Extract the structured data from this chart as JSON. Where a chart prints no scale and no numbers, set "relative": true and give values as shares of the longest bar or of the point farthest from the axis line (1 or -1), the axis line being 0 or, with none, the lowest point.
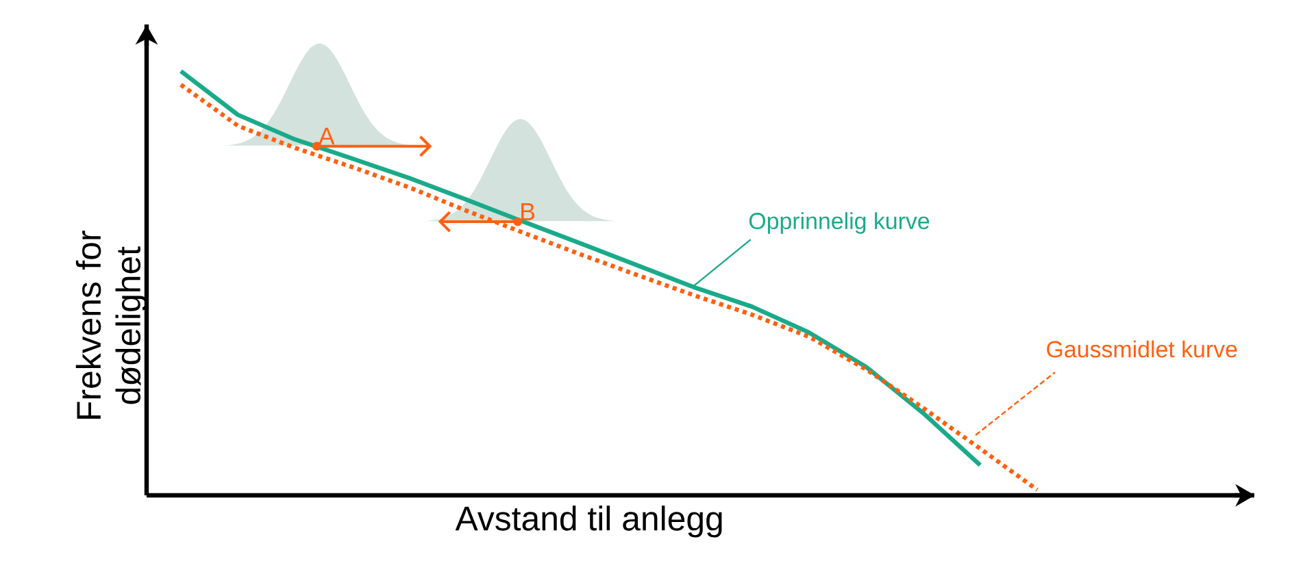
{
  "chart_data": {
    "type": "line",
    "relative": true,
    "xlabel": "Avstand til anlegg",
    "ylabel": "Frekvens for dødelighet",
    "legend": false,
    "marker": "none",
    "categories": [
      null,
      null,
      null,
      null,
      null,
      null,
      null,
      null,
      null,
      null,
      null,
      null,
      null,
      null,
      null,
      null
    ],
    "series": [
      {
        "name": "Opprinnelig kurve",
        "color": "#1aaa8a",
        "line_style": "solid",
        "values": [
          1.0,
          0.897,
          0.839,
          0.794,
          0.748,
          0.697,
          0.645,
          0.594,
          0.542,
          0.49,
          0.445,
          0.384,
          0.303,
          0.194,
          0.071,
          null
        ]
      },
      {
        "name": "Gaussmidlet kurve",
        "color": "#ff6010",
        "line_style": "dotted",
        "values": [
          0.968,
          0.871,
          0.819,
          0.774,
          0.726,
          0.671,
          0.619,
          0.568,
          0.519,
          0.471,
          0.426,
          0.374,
          0.297,
          0.206,
          0.11,
          0.013
        ]
      }
    ],
    "annotations": [
      {
        "text": "A",
        "y": 0.823
      },
      {
        "text": "B",
        "y": 0.645
      }
    ]
  }
}
